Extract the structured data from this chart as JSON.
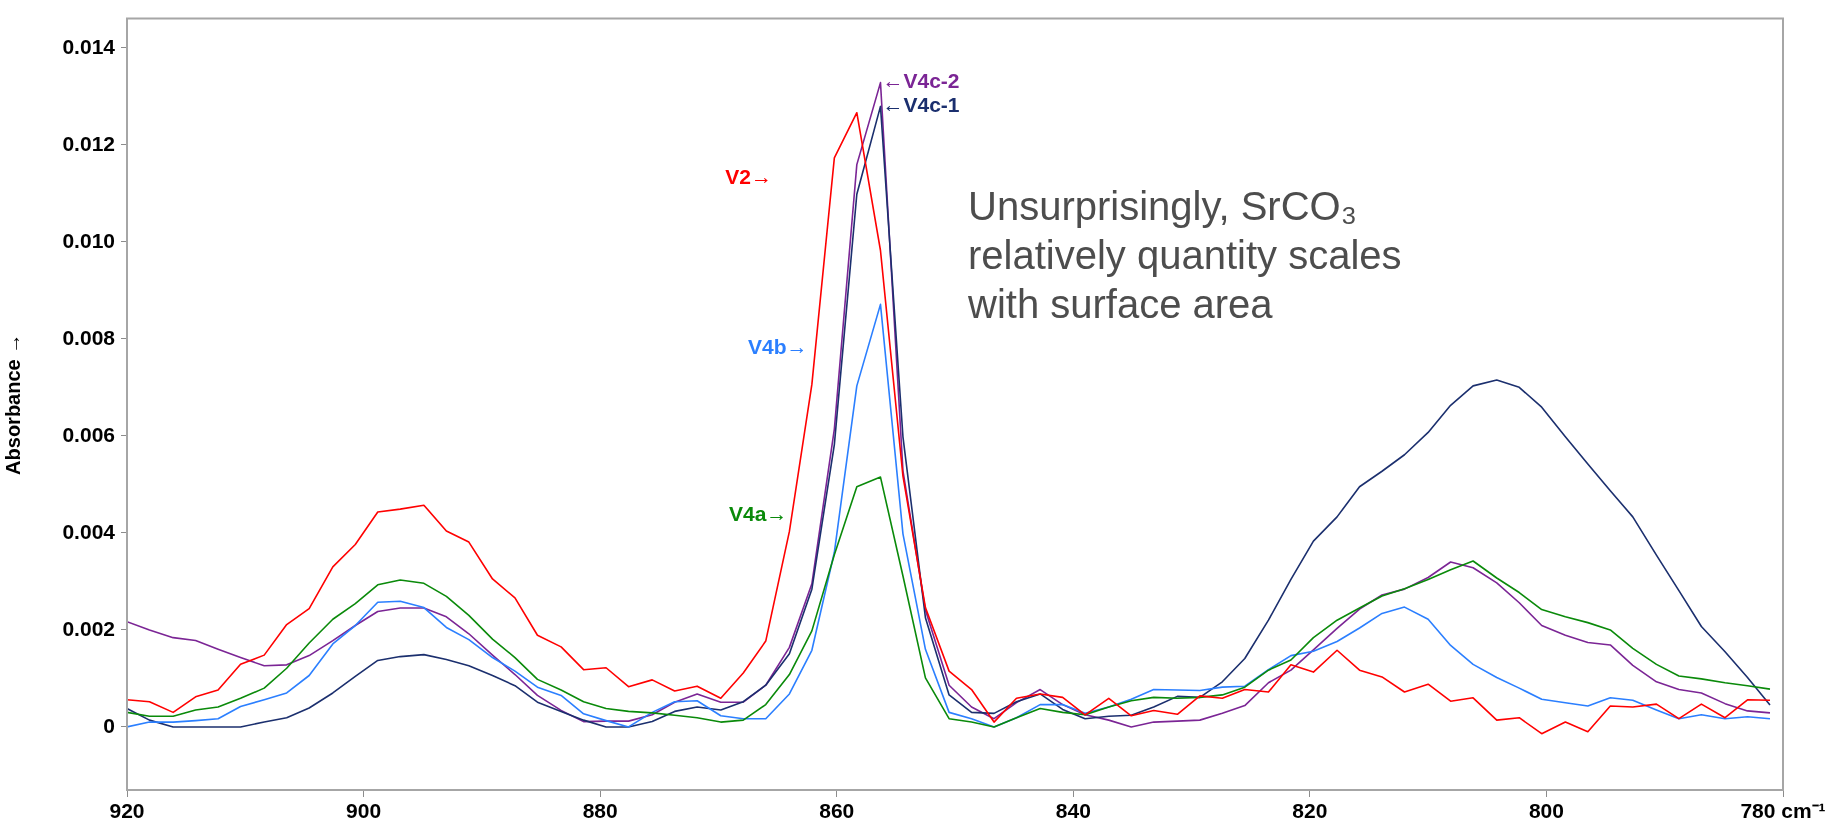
{
  "chart_data": {
    "type": "line",
    "ylabel": "Absorbance →",
    "x": [
      920,
      918.1,
      916.1,
      914.2,
      912.3,
      910.4,
      908.4,
      906.5,
      904.6,
      902.6,
      900.7,
      898.8,
      896.9,
      894.9,
      893.0,
      891.1,
      889.1,
      887.2,
      885.3,
      883.3,
      881.4,
      879.5,
      877.6,
      875.6,
      873.7,
      871.8,
      869.8,
      867.9,
      866.0,
      864.0,
      862.1,
      860.2,
      858.3,
      856.3,
      854.4,
      852.5,
      850.5,
      848.6,
      846.7,
      844.8,
      842.8,
      840.9,
      839.0,
      837.0,
      835.1,
      833.2,
      831.2,
      829.3,
      827.4,
      825.5,
      823.5,
      821.6,
      819.7,
      817.7,
      815.8,
      813.9,
      812.0,
      810.0,
      808.1,
      806.2,
      804.2,
      802.3,
      800.4,
      798.4,
      796.5,
      794.6,
      792.7,
      790.7,
      788.8,
      786.9,
      784.9,
      783.0,
      781.1
    ],
    "series": [
      {
        "color": "#ff0000",
        "values": [
          0.00056,
          0.00052,
          0.0003,
          0.00062,
          0.00076,
          0.00129,
          0.00148,
          0.00211,
          0.00244,
          0.0033,
          0.00376,
          0.00443,
          0.00449,
          0.00457,
          0.00404,
          0.00381,
          0.00305,
          0.00266,
          0.00189,
          0.00165,
          0.00118,
          0.00122,
          0.00083,
          0.00097,
          0.00074,
          0.00084,
          0.00059,
          0.00111,
          0.00177,
          0.00403,
          0.00706,
          0.01173,
          0.01266,
          0.00982,
          0.00517,
          0.00246,
          0.00115,
          0.00077,
          0.0001,
          0.00059,
          0.00068,
          0.00061,
          0.00025,
          0.00059,
          0.00023,
          0.00034,
          0.00026,
          0.00064,
          0.00059,
          0.00077,
          0.00072,
          0.00128,
          0.00113,
          0.00158,
          0.00117,
          0.00103,
          0.00072,
          0.00088,
          0.00053,
          0.0006,
          0.00014,
          0.00019,
          -0.00014,
          0.0001,
          -0.0001,
          0.00043,
          0.00041,
          0.00047,
          0.00017,
          0.00047,
          0.00019,
          0.00056,
          0.00055
        ]
      },
      {
        "color": "#0a8a0a",
        "values": [
          0.0003,
          0.00022,
          0.00022,
          0.00035,
          0.00041,
          0.00059,
          0.0008,
          0.00121,
          0.00173,
          0.00222,
          0.00254,
          0.00293,
          0.00303,
          0.00296,
          0.00269,
          0.0023,
          0.00181,
          0.00143,
          0.00098,
          0.00076,
          0.00052,
          0.00038,
          0.00032,
          0.00029,
          0.00024,
          0.00019,
          0.0001,
          0.00014,
          0.00046,
          0.00108,
          0.00198,
          0.00355,
          0.00495,
          0.00515,
          0.00311,
          0.00101,
          0.00017,
          0.0001,
          0,
          0.00019,
          0.00038,
          0.0003,
          0.00025,
          0.00041,
          0.00054,
          0.00061,
          0.00059,
          0.00061,
          0.00066,
          0.00082,
          0.00117,
          0.00138,
          0.00184,
          0.0022,
          0.00245,
          0.0027,
          0.00285,
          0.00304,
          0.00324,
          0.00342,
          0.00307,
          0.00277,
          0.00242,
          0.00227,
          0.00215,
          0.002,
          0.00162,
          0.00129,
          0.00105,
          0.00099,
          0.00091,
          0.00085,
          0.00078
        ]
      },
      {
        "color": "#2b7fff",
        "values": [
          0,
          0.0001,
          0.0001,
          0.00013,
          0.00017,
          0.00042,
          0.00056,
          0.0007,
          0.00106,
          0.00171,
          0.00209,
          0.00257,
          0.00259,
          0.00246,
          0.00205,
          0.0018,
          0.00143,
          0.00115,
          0.00082,
          0.00065,
          0.00027,
          0.00013,
          0,
          0.0003,
          0.00052,
          0.00054,
          0.00023,
          0.00017,
          0.00017,
          0.00068,
          0.00158,
          0.0036,
          0.00703,
          0.00871,
          0.00398,
          0.0016,
          0.0003,
          0.00017,
          0,
          0.00019,
          0.00046,
          0.00046,
          0.00028,
          0.00041,
          0.00057,
          0.00077,
          0.00076,
          0.00075,
          0.00082,
          0.00084,
          0.00118,
          0.00147,
          0.00156,
          0.00176,
          0.00204,
          0.00234,
          0.00247,
          0.00222,
          0.00168,
          0.00129,
          0.00102,
          0.0008,
          0.00057,
          0.0005,
          0.00043,
          0.0006,
          0.00055,
          0.00035,
          0.00017,
          0.00025,
          0.00017,
          0.00021,
          0.00017
        ]
      },
      {
        "color": "#1b2f6e",
        "values": [
          0.00038,
          0.00014,
          0,
          0,
          0,
          0,
          0.0001,
          0.00019,
          0.00039,
          0.0007,
          0.00104,
          0.00137,
          0.00145,
          0.00149,
          0.00139,
          0.00126,
          0.00106,
          0.00085,
          0.00051,
          0.00032,
          0.00014,
          0,
          0,
          0.00011,
          0.00032,
          0.00041,
          0.00035,
          0.00052,
          0.00086,
          0.00151,
          0.00284,
          0.00582,
          0.01098,
          0.01279,
          0.00598,
          0.00225,
          0.00066,
          0.0003,
          0.00028,
          0.00052,
          0.00068,
          0.00036,
          0.00017,
          0.00022,
          0.00024,
          0.00041,
          0.00063,
          0.00061,
          0.00093,
          0.00141,
          0.0022,
          0.00304,
          0.00383,
          0.00433,
          0.00495,
          0.00527,
          0.00561,
          0.00607,
          0.00663,
          0.00703,
          0.00715,
          0.007,
          0.00659,
          0.00598,
          0.00542,
          0.00487,
          0.00433,
          0.00354,
          0.00281,
          0.00207,
          0.00155,
          0.00102,
          0.00045
        ]
      },
      {
        "color": "#7b2595",
        "values": [
          0.00217,
          0.002,
          0.00184,
          0.00178,
          0.0016,
          0.00143,
          0.00126,
          0.00128,
          0.00147,
          0.00178,
          0.00209,
          0.00238,
          0.00245,
          0.00245,
          0.00227,
          0.00192,
          0.00148,
          0.00108,
          0.00065,
          0.00034,
          0.00011,
          0.00012,
          0.00012,
          0.00025,
          0.00051,
          0.00068,
          0.00051,
          0.00051,
          0.00086,
          0.00164,
          0.00295,
          0.00614,
          0.01159,
          0.01328,
          0.00528,
          0.00241,
          0.00086,
          0.00041,
          0.00017,
          0.0005,
          0.00077,
          0.00046,
          0.00025,
          0.00014,
          0,
          0.0001,
          0.00012,
          0.00014,
          0.00028,
          0.00044,
          0.00091,
          0.00117,
          0.00159,
          0.00203,
          0.00243,
          0.00272,
          0.00284,
          0.00308,
          0.0034,
          0.00328,
          0.00297,
          0.00256,
          0.00209,
          0.00189,
          0.00174,
          0.00169,
          0.00127,
          0.00093,
          0.00077,
          0.0007,
          0.00048,
          0.00033,
          0.00029
        ]
      }
    ],
    "annotations": [
      {
        "text": "V2→",
        "x": 860.4,
        "y": 0.0113
      },
      {
        "text": "V4a→",
        "x": 859.1,
        "y": 0.00437
      },
      {
        "text": "V4b→",
        "x": 857.4,
        "y": 0.0078
      },
      {
        "text": "←V4c-1",
        "x": 856.3,
        "y": 0.01279
      },
      {
        "text": "←V4c-2",
        "x": 856.3,
        "y": 0.01328
      },
      "Unsurprisingly, SrCO₃ relatively quantity scales with surface area"
    ],
    "xlim": [
      920,
      780
    ],
    "xticks": [
      920,
      900,
      880,
      860,
      840,
      820,
      800,
      {
        "value": 780,
        "label": "780 cm⁻¹"
      }
    ],
    "ylim": [
      -0.0013,
      0.0146
    ],
    "yticks": [
      0,
      0.002,
      0.004,
      0.006,
      0.008,
      {
        "value": 0.01,
        "label": "0.010"
      },
      0.012,
      0.014
    ],
    "marker": "none",
    "line_style": "solid",
    "legend": false,
    "grid": false
  }
}
